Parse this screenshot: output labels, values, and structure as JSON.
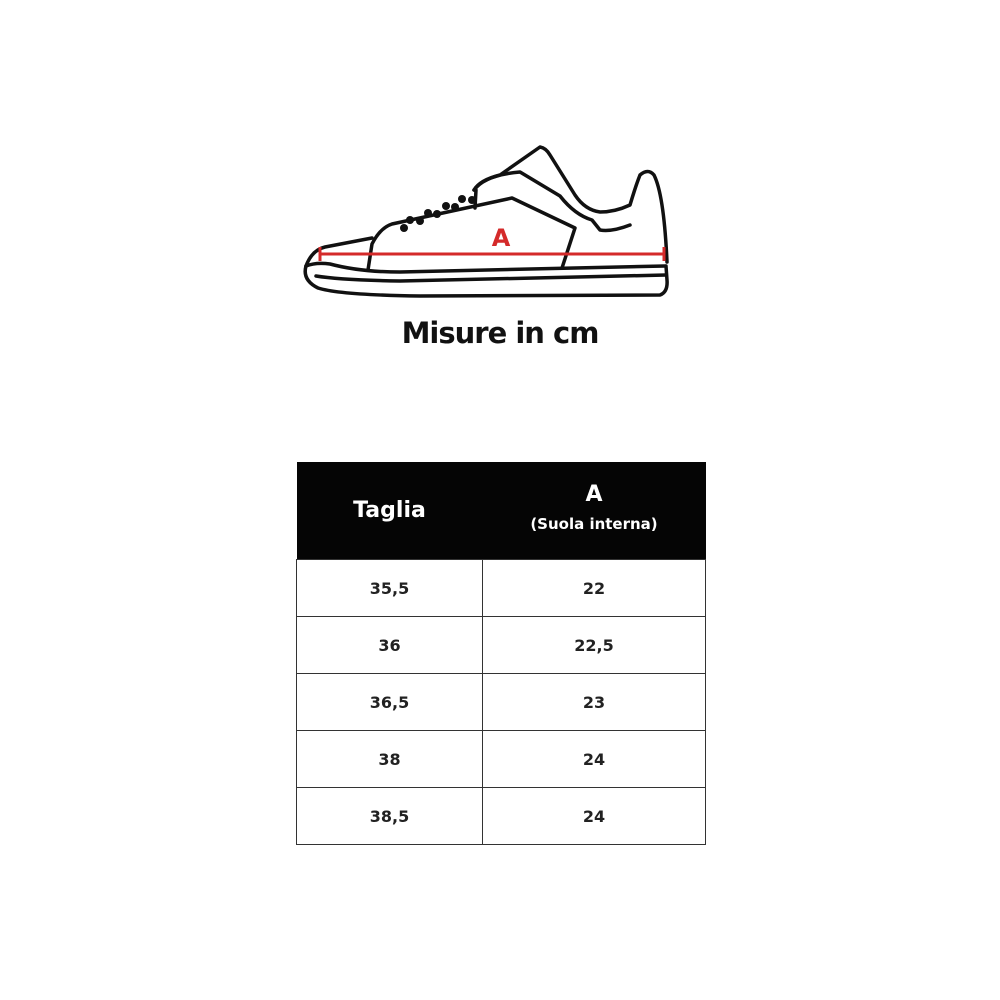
{
  "diagram": {
    "measure_label": "A",
    "measure_color": "#d42a2a"
  },
  "caption": "Misure in cm",
  "table": {
    "headers": {
      "size": "Taglia",
      "measure": "A",
      "measure_sub": "(Suola interna)"
    },
    "rows": [
      {
        "size": "35,5",
        "a": "22"
      },
      {
        "size": "36",
        "a": "22,5"
      },
      {
        "size": "36,5",
        "a": "23"
      },
      {
        "size": "38",
        "a": "24"
      },
      {
        "size": "38,5",
        "a": "24"
      }
    ]
  }
}
